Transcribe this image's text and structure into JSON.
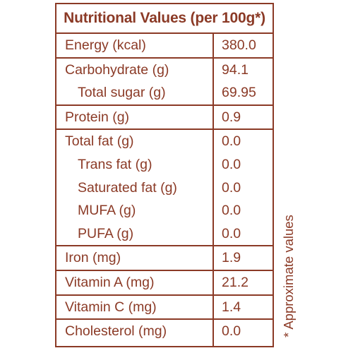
{
  "title": "Nutritional Values (per 100g*)",
  "groups": [
    {
      "rows": [
        {
          "label": "Energy (kcal)",
          "value": "380.0",
          "indent": false
        }
      ]
    },
    {
      "rows": [
        {
          "label": "Carbohydrate (g)",
          "value": "94.1",
          "indent": false
        },
        {
          "label": "Total sugar (g)",
          "value": "69.95",
          "indent": true
        }
      ]
    },
    {
      "rows": [
        {
          "label": "Protein (g)",
          "value": "0.9",
          "indent": false
        }
      ]
    },
    {
      "rows": [
        {
          "label": "Total fat (g)",
          "value": "0.0",
          "indent": false
        },
        {
          "label": "Trans fat (g)",
          "value": "0.0",
          "indent": true
        },
        {
          "label": "Saturated fat (g)",
          "value": "0.0",
          "indent": true
        },
        {
          "label": "MUFA (g)",
          "value": "0.0",
          "indent": true
        },
        {
          "label": "PUFA (g)",
          "value": "0.0",
          "indent": true
        }
      ]
    },
    {
      "rows": [
        {
          "label": "Iron (mg)",
          "value": "1.9",
          "indent": false
        }
      ]
    },
    {
      "rows": [
        {
          "label": "Vitamin A (mg)",
          "value": "21.2",
          "indent": false
        }
      ]
    },
    {
      "rows": [
        {
          "label": "Vitamin C (mg)",
          "value": "1.4",
          "indent": false
        }
      ]
    },
    {
      "rows": [
        {
          "label": "Cholesterol (mg)",
          "value": "0.0",
          "indent": false
        }
      ]
    }
  ],
  "footnote": "* Approximate values",
  "colors": {
    "ink": "#8b3a26",
    "background": "#ffffff"
  }
}
